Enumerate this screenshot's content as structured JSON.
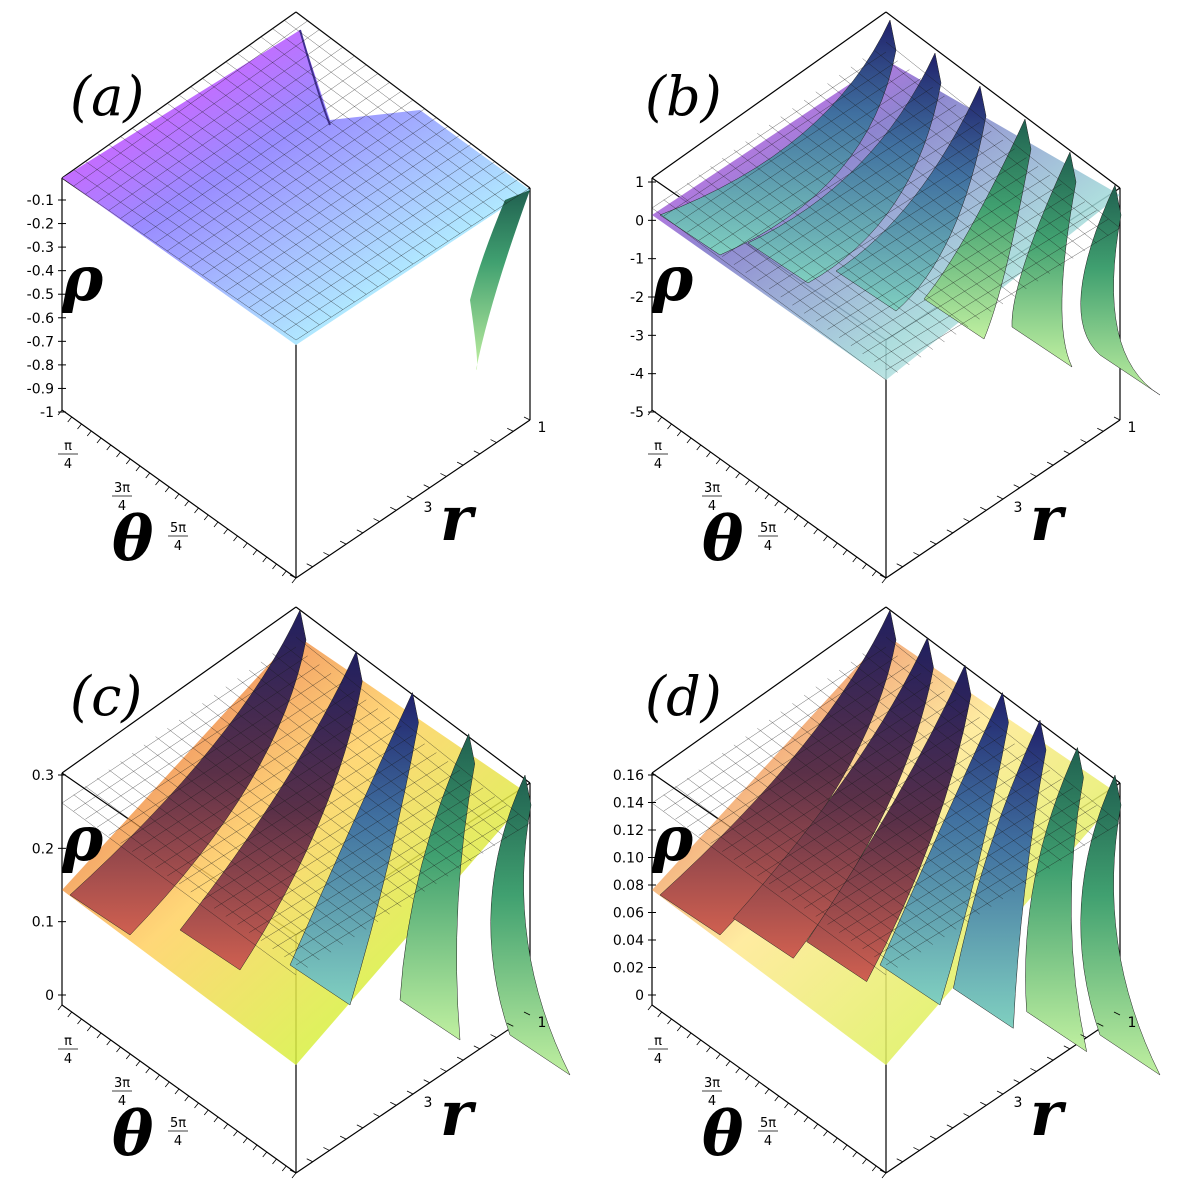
{
  "chart_data": [
    {
      "type": "surface",
      "panel_label": "(a)",
      "zlabel": "ρ",
      "xlabel": "θ",
      "ylabel": "r",
      "z_ticks": [
        "-0.1",
        "-0.2",
        "-0.3",
        "-0.4",
        "-0.5",
        "-0.6",
        "-0.7",
        "-0.8",
        "-0.9",
        "-1"
      ],
      "zlim": [
        -1,
        0
      ],
      "x_ticks": [
        "π/4",
        "3π/4",
        "5π/4"
      ],
      "y_ticks": [
        "1",
        "3"
      ],
      "ridges": 1,
      "colormap": [
        "#e040e0",
        "#8080ff",
        "#40c0c0",
        "#208050",
        "#ffffff"
      ]
    },
    {
      "type": "surface",
      "panel_label": "(b)",
      "zlabel": "ρ",
      "xlabel": "θ",
      "ylabel": "r",
      "z_ticks": [
        "1",
        "0",
        "-1",
        "-2",
        "-3",
        "-4",
        "-5"
      ],
      "zlim": [
        -5,
        1
      ],
      "x_ticks": [
        "π/4",
        "3π/4",
        "5π/4"
      ],
      "y_ticks": [
        "1",
        "3"
      ],
      "ridges": 6,
      "colormap": [
        "#e040e0",
        "#6060c0",
        "#40a0a0",
        "#208050",
        "#ffffff"
      ]
    },
    {
      "type": "surface",
      "panel_label": "(c)",
      "zlabel": "ρ",
      "xlabel": "θ",
      "ylabel": "r",
      "z_ticks": [
        "0.3",
        "0.2",
        "0.1",
        "0"
      ],
      "zlim": [
        0,
        0.33
      ],
      "x_ticks": [
        "π/4",
        "3π/4",
        "5π/4"
      ],
      "y_ticks": [
        "1",
        "3"
      ],
      "ridges": 5,
      "colormap": [
        "#e03030",
        "#ffe040",
        "#40a060",
        "#2030a0",
        "#000000"
      ]
    },
    {
      "type": "surface",
      "panel_label": "(d)",
      "zlabel": "ρ",
      "xlabel": "θ",
      "ylabel": "r",
      "z_ticks": [
        "0.16",
        "0.14",
        "0.12",
        "0.10",
        "0.08",
        "0.06",
        "0.04",
        "0.02",
        "0"
      ],
      "zlim": [
        0,
        0.17
      ],
      "x_ticks": [
        "π/4",
        "3π/4",
        "5π/4"
      ],
      "y_ticks": [
        "1",
        "3"
      ],
      "ridges": 7,
      "colormap": [
        "#e03030",
        "#ffe040",
        "#40a060",
        "#2030a0",
        "#000000"
      ]
    }
  ]
}
